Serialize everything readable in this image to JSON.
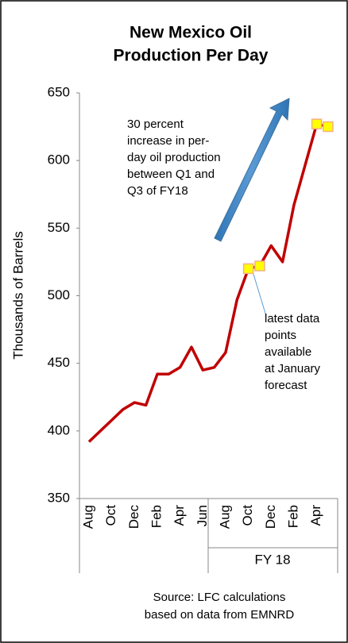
{
  "chart_data": {
    "type": "line",
    "title": [
      "New Mexico Oil",
      "Production Per Day"
    ],
    "y_label": "Thousands of Barrels",
    "categories": [
      "Aug",
      null,
      "Oct",
      null,
      "Dec",
      null,
      "Feb",
      null,
      "Apr",
      null,
      "Jun",
      null,
      "Aug",
      null,
      "Oct",
      null,
      "Dec",
      null,
      "Feb",
      null,
      "Apr",
      null
    ],
    "group_label": "FY 18",
    "series": [
      {
        "color": "#c00000",
        "values": [
          392,
          400,
          408,
          416,
          421,
          419,
          442,
          442,
          447,
          462,
          445,
          447,
          458,
          497,
          520,
          522,
          537,
          525,
          567,
          597,
          627,
          625
        ]
      }
    ],
    "markers": {
      "color": "#ffff00",
      "indices": [
        14,
        15,
        20,
        21
      ]
    },
    "ylim": [
      350,
      650
    ],
    "yticks": [
      350,
      400,
      450,
      500,
      550,
      600,
      650
    ],
    "grid": false,
    "annotations": [
      [
        "30 percent",
        "increase in per-",
        "day oil production",
        "between Q1 and",
        "Q3 of FY18"
      ],
      [
        "latest data",
        "points",
        "available",
        "at January",
        "forecast"
      ]
    ],
    "source": [
      "Source: LFC calculations",
      "based on data from EMNRD"
    ]
  }
}
